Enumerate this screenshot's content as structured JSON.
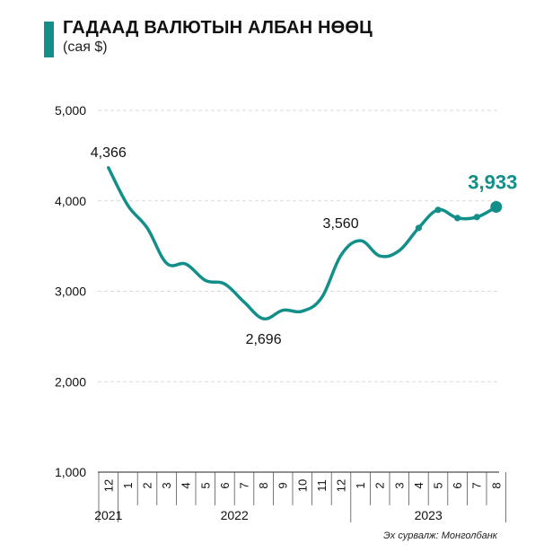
{
  "title": "ГАДААД ВАЛЮТЫН АЛБАН НӨӨЦ",
  "subtitle": "(сая $)",
  "source": "Эх сурвалж: Монголбанк",
  "colors": {
    "accent": "#138f8a",
    "line": "#138f8a",
    "grid": "#d9d9d9",
    "axis": "#222222",
    "text": "#111111"
  },
  "chart_data": {
    "type": "line",
    "title": "ГАДААД ВАЛЮТЫН АЛБАН НӨӨЦ",
    "ylabel": "(сая $)",
    "ylim": [
      1000,
      5000
    ],
    "yticks": [
      1000,
      2000,
      3000,
      4000,
      5000
    ],
    "ytick_labels": [
      "1,000",
      "2,000",
      "3,000",
      "4,000",
      "5,000"
    ],
    "grid": "horizontal dashed",
    "x_labels": [
      "12",
      "1",
      "2",
      "3",
      "4",
      "5",
      "6",
      "7",
      "8",
      "9",
      "10",
      "11",
      "12",
      "1",
      "2",
      "3",
      "4",
      "5",
      "6",
      "7",
      "8"
    ],
    "year_groups": [
      {
        "label": "2021",
        "start": 0,
        "end": 0
      },
      {
        "label": "2022",
        "start": 1,
        "end": 12
      },
      {
        "label": "2023",
        "start": 13,
        "end": 20
      }
    ],
    "values": [
      4366,
      3950,
      3700,
      3310,
      3300,
      3120,
      3080,
      2880,
      2696,
      2790,
      2780,
      2930,
      3400,
      3560,
      3390,
      3450,
      3700,
      3900,
      3810,
      3820,
      3933
    ],
    "markers": [
      16,
      17,
      18,
      19
    ],
    "annotations": [
      {
        "index": 0,
        "text": "4,366",
        "position": "above"
      },
      {
        "index": 8,
        "text": "2,696",
        "position": "below"
      },
      {
        "index": 13,
        "text": "3,560",
        "position": "above-left"
      },
      {
        "index": 20,
        "text": "3,933",
        "position": "above",
        "highlight": true
      }
    ]
  }
}
